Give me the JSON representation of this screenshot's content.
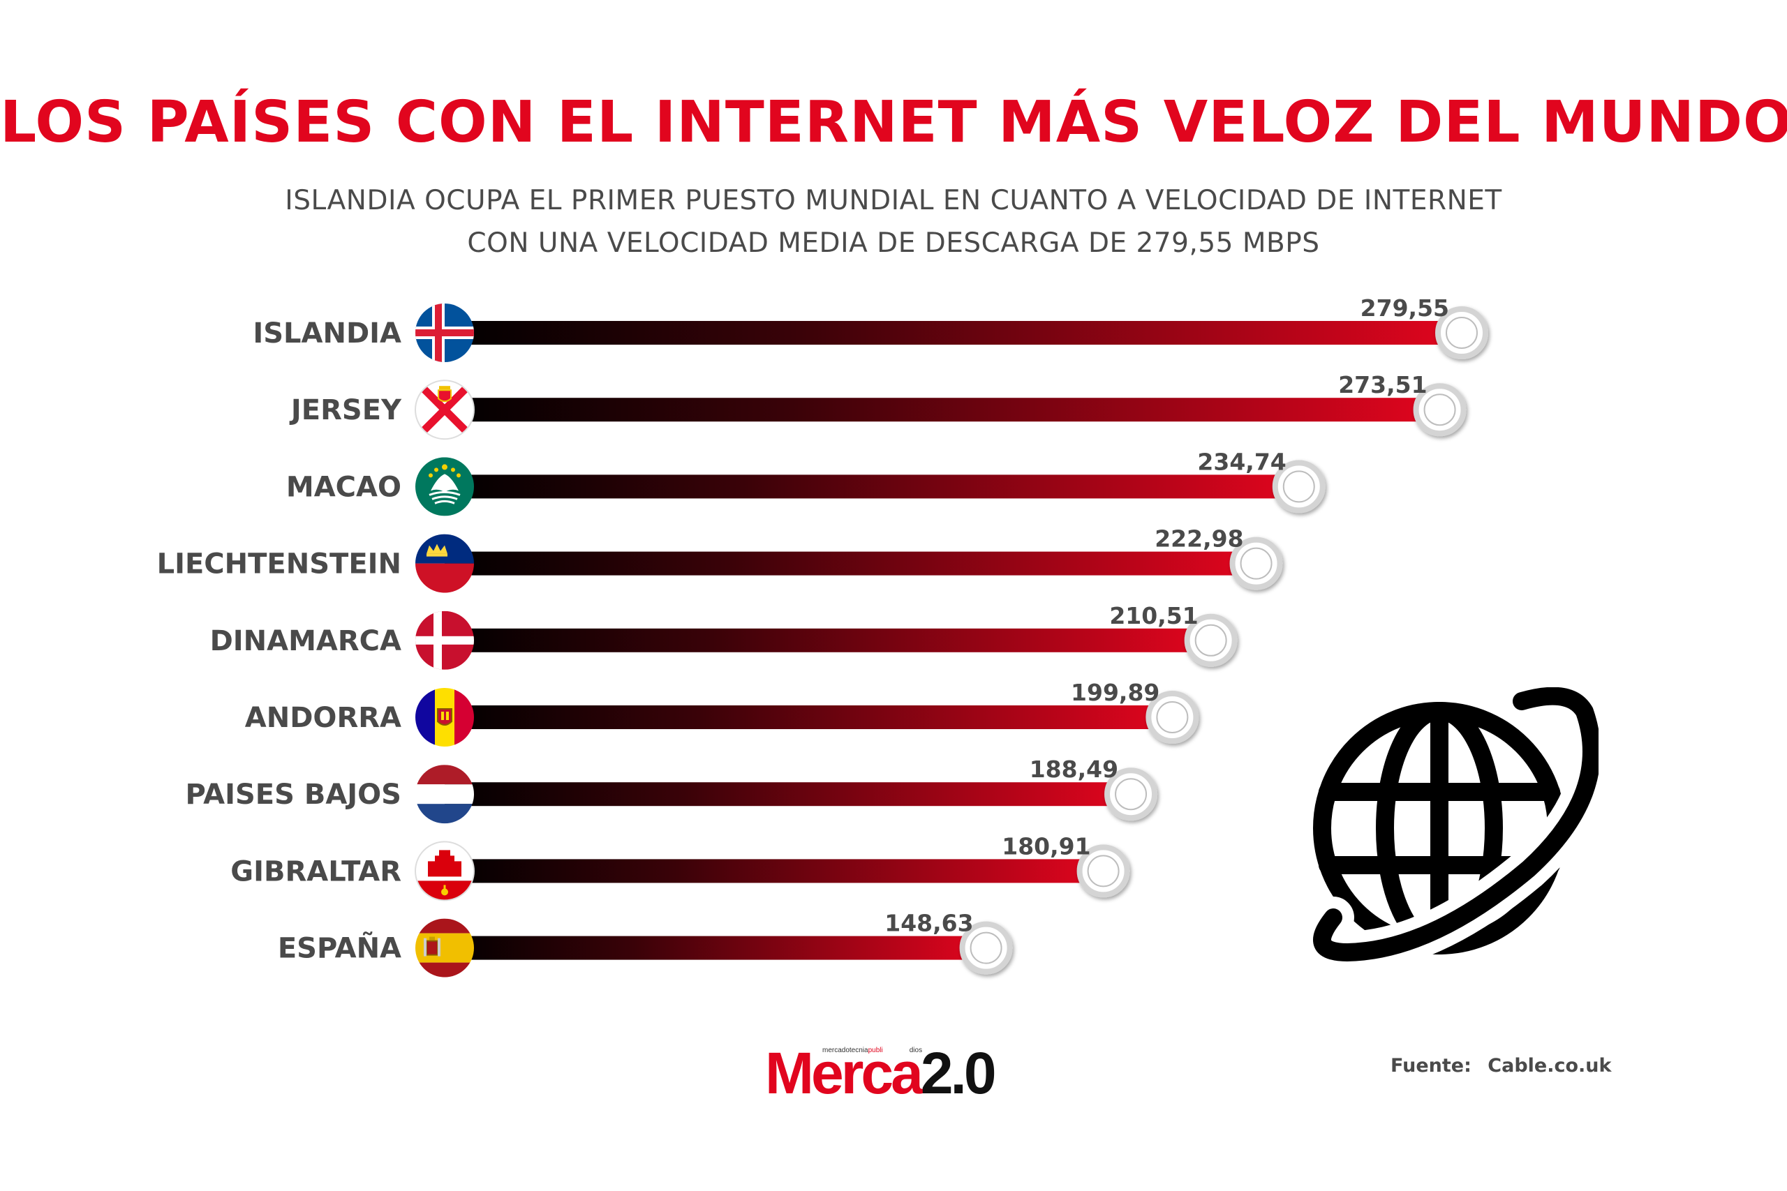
{
  "header": {
    "title": "LOS PAÍSES CON EL INTERNET MÁS VELOZ DEL MUNDO",
    "subtitle_line1": "ISLANDIA OCUPA EL PRIMER PUESTO MUNDIAL EN CUANTO A VELOCIDAD DE INTERNET",
    "subtitle_line2": "CON UNA VELOCIDAD MEDIA DE DESCARGA DE 279,55 MBPS"
  },
  "chart_data": {
    "type": "bar",
    "orientation": "horizontal",
    "categories": [
      "ISLANDIA",
      "JERSEY",
      "MACAO",
      "LIECHTENSTEIN",
      "DINAMARCA",
      "ANDORRA",
      "PAISES BAJOS",
      "GIBRALTAR",
      "ESPAÑA"
    ],
    "values": [
      279.55,
      273.51,
      234.74,
      222.98,
      210.51,
      199.89,
      188.49,
      180.91,
      148.63
    ],
    "value_labels": [
      "279,55",
      "273,51",
      "234,74",
      "222,98",
      "210,51",
      "199,89",
      "188,49",
      "180,91",
      "148,63"
    ],
    "flags": [
      "iceland-flag",
      "jersey-flag",
      "macao-flag",
      "liechtenstein-flag",
      "denmark-flag",
      "andorra-flag",
      "netherlands-flag",
      "gibraltar-flag",
      "spain-flag"
    ],
    "bar_gradient": [
      "#000000",
      "#e1051e"
    ],
    "grid": false,
    "legend": "none"
  },
  "footer": {
    "logo_small_a": "mercadotecnia",
    "logo_small_b": "publi",
    "logo_small_c": "dios",
    "logo_main_a": "Merca",
    "logo_main_b": "2.0",
    "source_label": "Fuente:",
    "source_value": "Cable.co.uk"
  },
  "decor": {
    "globe_icon": "globe-icon"
  },
  "colors": {
    "title": "#e1051e",
    "text": "#4a4a4a",
    "bar_end": "#e1051e",
    "bar_start": "#000000"
  }
}
